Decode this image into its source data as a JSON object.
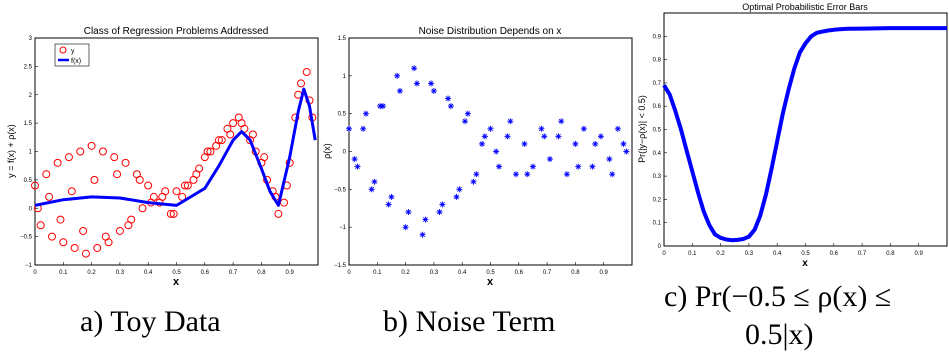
{
  "chart_data": [
    {
      "type": "scatter",
      "title": "Class of Regression Problems Addressed",
      "xlabel": "x",
      "ylabel": "y = f(x) + ρ(x)",
      "xlim": [
        0,
        1
      ],
      "ylim": [
        -1,
        3
      ],
      "xticks": [
        "0",
        "0.1",
        "0.2",
        "0.3",
        "0.4",
        "0.5",
        "0.6",
        "0.7",
        "0.8",
        "0.9"
      ],
      "yticks": [
        "−1",
        "−0.5",
        "0",
        "0.5",
        "1",
        "1.5",
        "2",
        "2.5",
        "3"
      ],
      "legend_position": "top-left",
      "series": [
        {
          "name": "y",
          "kind": "scatter",
          "marker": "circle",
          "color": "#ff0000",
          "x": [
            0.0,
            0.02,
            0.04,
            0.06,
            0.08,
            0.1,
            0.12,
            0.14,
            0.16,
            0.18,
            0.2,
            0.22,
            0.24,
            0.26,
            0.28,
            0.3,
            0.32,
            0.34,
            0.36,
            0.38,
            0.4,
            0.42,
            0.44,
            0.46,
            0.48,
            0.5,
            0.52,
            0.54,
            0.56,
            0.58,
            0.6,
            0.62,
            0.64,
            0.66,
            0.68,
            0.7,
            0.72,
            0.74,
            0.76,
            0.78,
            0.8,
            0.82,
            0.84,
            0.86,
            0.88,
            0.9,
            0.92,
            0.94,
            0.96,
            0.98,
            0.01,
            0.05,
            0.09,
            0.13,
            0.17,
            0.21,
            0.25,
            0.29,
            0.33,
            0.37,
            0.41,
            0.45,
            0.49,
            0.53,
            0.57,
            0.61,
            0.65,
            0.69,
            0.73,
            0.77,
            0.81,
            0.85,
            0.89,
            0.93,
            0.97
          ],
          "y": [
            0.4,
            -0.3,
            0.6,
            -0.5,
            0.8,
            -0.6,
            0.9,
            -0.7,
            1.0,
            -0.8,
            1.1,
            -0.7,
            1.0,
            -0.6,
            0.9,
            -0.4,
            0.8,
            -0.2,
            0.6,
            0.0,
            0.4,
            0.2,
            0.1,
            0.3,
            -0.1,
            0.3,
            0.2,
            0.4,
            0.5,
            0.7,
            0.9,
            1.0,
            1.1,
            1.2,
            1.4,
            1.5,
            1.6,
            1.4,
            1.2,
            1.0,
            0.8,
            0.5,
            0.3,
            -0.1,
            0.1,
            0.8,
            1.6,
            2.2,
            2.4,
            1.6,
            0.0,
            0.2,
            -0.2,
            0.3,
            -0.4,
            0.5,
            -0.5,
            0.6,
            -0.3,
            0.5,
            0.1,
            0.2,
            -0.1,
            0.4,
            0.6,
            1.0,
            1.2,
            1.3,
            1.5,
            1.3,
            0.9,
            0.2,
            0.4,
            2.0,
            1.9
          ]
        },
        {
          "name": "f(x)",
          "kind": "line",
          "color": "#0000ff",
          "x": [
            0.0,
            0.1,
            0.2,
            0.3,
            0.4,
            0.5,
            0.6,
            0.65,
            0.7,
            0.73,
            0.76,
            0.8,
            0.83,
            0.86,
            0.9,
            0.93,
            0.95,
            0.97,
            0.99
          ],
          "y": [
            0.05,
            0.15,
            0.2,
            0.18,
            0.1,
            0.05,
            0.35,
            0.75,
            1.2,
            1.35,
            1.2,
            0.7,
            0.3,
            0.05,
            0.9,
            1.7,
            2.1,
            1.8,
            1.2
          ]
        }
      ]
    },
    {
      "type": "scatter",
      "title": "Noise Distribution Depends on  x",
      "xlabel": "x",
      "ylabel": "ρ(x)",
      "xlim": [
        0,
        1
      ],
      "ylim": [
        -1.5,
        1.5
      ],
      "xticks": [
        "0",
        "0.1",
        "0.2",
        "0.3",
        "0.4",
        "0.5",
        "0.6",
        "0.7",
        "0.8",
        "0.9"
      ],
      "yticks": [
        "−1.5",
        "−1",
        "−0.5",
        "0",
        "0.5",
        "1",
        "1.5"
      ],
      "series": [
        {
          "kind": "scatter",
          "marker": "asterisk",
          "color": "#0000ff",
          "x": [
            0.0,
            0.03,
            0.06,
            0.09,
            0.12,
            0.15,
            0.18,
            0.21,
            0.24,
            0.27,
            0.3,
            0.33,
            0.36,
            0.39,
            0.42,
            0.45,
            0.48,
            0.5,
            0.53,
            0.56,
            0.59,
            0.62,
            0.65,
            0.68,
            0.71,
            0.74,
            0.77,
            0.8,
            0.83,
            0.86,
            0.89,
            0.92,
            0.95,
            0.98,
            0.02,
            0.05,
            0.08,
            0.11,
            0.14,
            0.17,
            0.2,
            0.23,
            0.26,
            0.29,
            0.32,
            0.35,
            0.38,
            0.41,
            0.44,
            0.47,
            0.52,
            0.57,
            0.63,
            0.69,
            0.75,
            0.81,
            0.87,
            0.93,
            0.97
          ],
          "y": [
            0.3,
            -0.2,
            0.5,
            -0.4,
            0.6,
            -0.6,
            0.8,
            -0.8,
            0.9,
            -0.9,
            0.8,
            -0.7,
            0.6,
            -0.5,
            0.5,
            -0.3,
            0.2,
            0.3,
            -0.2,
            0.2,
            -0.3,
            0.1,
            -0.2,
            0.3,
            -0.1,
            0.2,
            -0.3,
            0.1,
            0.3,
            -0.2,
            0.2,
            -0.1,
            0.3,
            0.0,
            -0.1,
            0.3,
            -0.5,
            0.6,
            -0.7,
            1.0,
            -1.0,
            1.1,
            -1.1,
            0.9,
            -0.8,
            0.7,
            -0.6,
            0.4,
            -0.4,
            0.1,
            0.0,
            0.4,
            -0.3,
            0.2,
            0.4,
            -0.2,
            0.1,
            -0.3,
            0.1
          ]
        }
      ]
    },
    {
      "type": "line",
      "title": "Optimal Probabilistic Error Bars",
      "xlabel": "x",
      "ylabel": "Pr(|y−ρ(x)| < 0.5)",
      "xlim": [
        0,
        1
      ],
      "ylim": [
        0,
        1
      ],
      "xticks": [
        "0",
        "0.1",
        "0.2",
        "0.3",
        "0.4",
        "0.5",
        "0.6",
        "0.7",
        "0.8",
        "0.9"
      ],
      "yticks": [
        "0",
        "0.1",
        "0.2",
        "0.3",
        "0.4",
        "0.5",
        "0.6",
        "0.7",
        "0.8",
        "0.9"
      ],
      "series": [
        {
          "kind": "line",
          "color": "#0000ff",
          "x": [
            0.0,
            0.02,
            0.04,
            0.06,
            0.08,
            0.1,
            0.12,
            0.14,
            0.16,
            0.18,
            0.2,
            0.22,
            0.24,
            0.26,
            0.28,
            0.3,
            0.32,
            0.34,
            0.36,
            0.38,
            0.4,
            0.42,
            0.44,
            0.46,
            0.48,
            0.5,
            0.52,
            0.54,
            0.56,
            0.58,
            0.6,
            0.62,
            0.65,
            0.7,
            0.75,
            0.8,
            0.85,
            0.9,
            0.95,
            1.0
          ],
          "y": [
            0.69,
            0.65,
            0.58,
            0.5,
            0.41,
            0.32,
            0.23,
            0.15,
            0.09,
            0.05,
            0.035,
            0.028,
            0.025,
            0.026,
            0.03,
            0.04,
            0.07,
            0.13,
            0.22,
            0.33,
            0.45,
            0.57,
            0.67,
            0.76,
            0.83,
            0.87,
            0.9,
            0.915,
            0.92,
            0.925,
            0.928,
            0.93,
            0.932,
            0.933,
            0.934,
            0.935,
            0.935,
            0.935,
            0.935,
            0.935
          ]
        }
      ]
    }
  ],
  "captions": {
    "a": "a) Toy Data",
    "b": "b) Noise Term",
    "c_line1": "c) Pr(−0.5 ≤ ρ(x) ≤",
    "c_line2": "0.5|x)"
  },
  "legend": {
    "y": "y",
    "f": "f(x)"
  }
}
